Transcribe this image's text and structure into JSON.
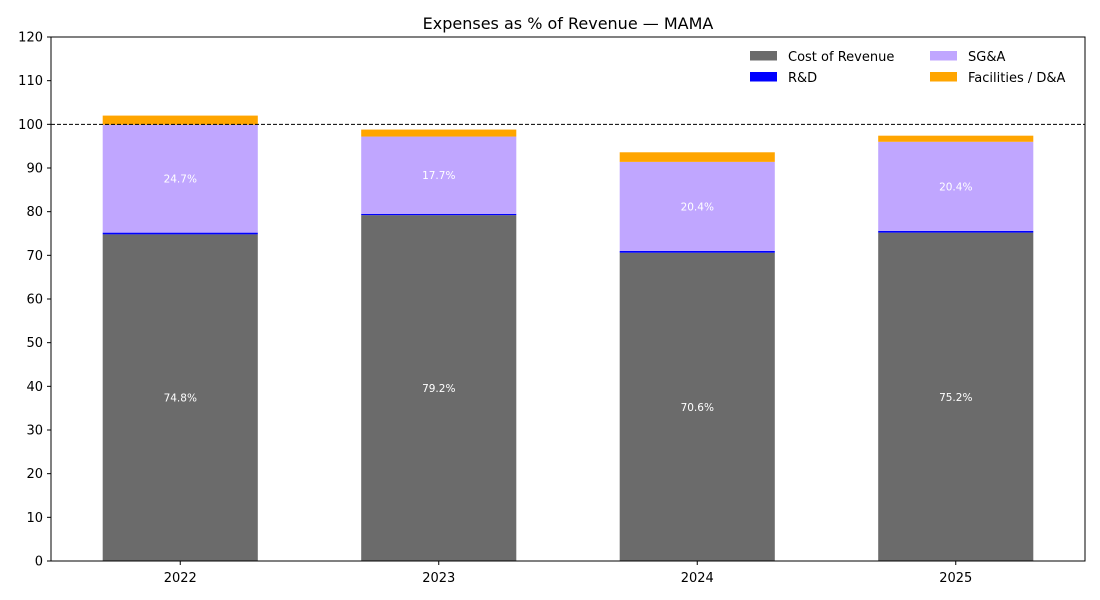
{
  "chart_data": {
    "type": "bar",
    "stacked": true,
    "title": "Expenses as % of Revenue — MAMA",
    "xlabel": "",
    "ylabel": "",
    "categories": [
      "2022",
      "2023",
      "2024",
      "2025"
    ],
    "ylim": [
      0,
      120
    ],
    "yticks": [
      0,
      10,
      20,
      30,
      40,
      50,
      60,
      70,
      80,
      90,
      100,
      110,
      120
    ],
    "reference_line": {
      "y": 100,
      "style": "dashed",
      "color": "#000000"
    },
    "grid": false,
    "legend": {
      "placement": "top-right",
      "columns": 2
    },
    "series": [
      {
        "name": "Cost of Revenue",
        "color": "#6b6b6b",
        "values": [
          74.8,
          79.2,
          70.6,
          75.2
        ],
        "labels": [
          "74.8%",
          "79.2%",
          "70.6%",
          "75.2%"
        ]
      },
      {
        "name": "R&D",
        "color": "#0000ff",
        "values": [
          0.4,
          0.3,
          0.4,
          0.4
        ],
        "labels": [
          "",
          "",
          "",
          ""
        ]
      },
      {
        "name": "SG&A",
        "color": "#c0a6ff",
        "values": [
          24.7,
          17.7,
          20.4,
          20.4
        ],
        "labels": [
          "24.7%",
          "17.7%",
          "20.4%",
          "20.4%"
        ]
      },
      {
        "name": "Facilities / D&A",
        "color": "#ffa500",
        "values": [
          2.1,
          1.6,
          2.2,
          1.4
        ],
        "labels": [
          "",
          "",
          "",
          ""
        ]
      }
    ]
  }
}
